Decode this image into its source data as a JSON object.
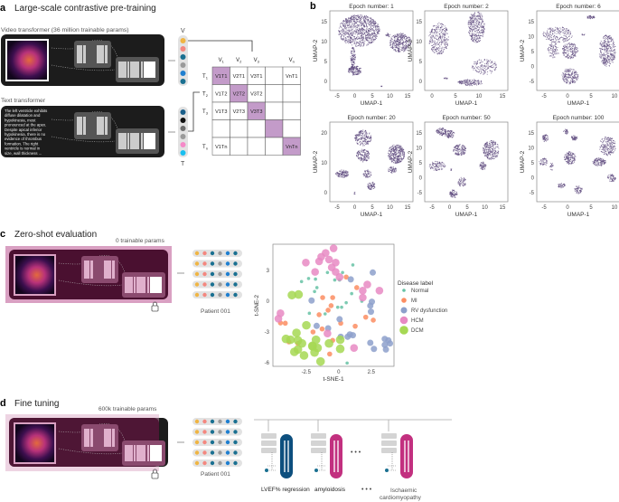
{
  "panel_a": {
    "letter": "a",
    "title": "Large-scale contrastive pre-training",
    "video_label": "Video transformer (36 million trainable params)",
    "text_label": "Text transformer",
    "report_lines": [
      "The left ventricle exhibits",
      "diffuse dilatation and",
      "hypokinesia, most",
      "pronounced at the apex.",
      "Despite apical inferior",
      "hypokinesia, there is no",
      "evidence of thrombus",
      "formation. The right",
      "ventricle is normal in",
      "size, wall thickness ..."
    ],
    "v_label": "V",
    "t_label": "T",
    "v_colors": [
      "#f0b543",
      "#f4877f",
      "#1a7091",
      "#9a9a9a",
      "#1f7fd0",
      "#1a7091"
    ],
    "t_colors": [
      "#1a5f8a",
      "#111111",
      "#6f6f6f",
      "#9a9a9a",
      "#f58ac8",
      "#19bff0"
    ],
    "matrix": {
      "col_headers": [
        "V1",
        "V2",
        "V3",
        "",
        "Vn"
      ],
      "row_headers": [
        "T1",
        "T2",
        "T3",
        "",
        "Tn"
      ],
      "cells": [
        [
          "V1T1",
          "V2T1",
          "V3T1",
          "",
          "VnT1"
        ],
        [
          "V1T2",
          "V2T2",
          "V3T2",
          "",
          ""
        ],
        [
          "V1T3",
          "V2T3",
          "V3T3",
          "",
          ""
        ],
        [
          "",
          "",
          "",
          "",
          ""
        ],
        [
          "V1Tn",
          "",
          "",
          "",
          "VnTn"
        ]
      ],
      "highlight_color": "#c39bc9"
    }
  },
  "panel_b": {
    "letter": "b",
    "plots": [
      {
        "title": "Epoch number: 1",
        "xticks": [
          "-5",
          "0",
          "5",
          "10",
          "15"
        ],
        "yticks": [
          "15",
          "10",
          "5",
          "0"
        ]
      },
      {
        "title": "Epoch number: 2",
        "xticks": [
          "0",
          "5",
          "10",
          "15"
        ],
        "yticks": [
          "15",
          "10",
          "5",
          "0"
        ]
      },
      {
        "title": "Epoch number: 6",
        "xticks": [
          "-5",
          "0",
          "5",
          "10"
        ],
        "yticks": [
          "15",
          "10",
          "5",
          "0",
          "-5"
        ]
      },
      {
        "title": "Epoch number: 20",
        "xticks": [
          "-5",
          "0",
          "5",
          "10",
          "15"
        ],
        "yticks": [
          "20",
          "10",
          "0"
        ]
      },
      {
        "title": "Epoch number: 50",
        "xticks": [
          "-5",
          "0",
          "5",
          "10",
          "15"
        ],
        "yticks": [
          "15",
          "10",
          "5",
          "0",
          "-5"
        ]
      },
      {
        "title": "Epoch number: 100",
        "xticks": [
          "-5",
          "0",
          "5",
          "10"
        ],
        "yticks": [
          "15",
          "10",
          "5",
          "0",
          "-5"
        ]
      }
    ],
    "xlabel": "UMAP-1",
    "ylabel": "UMAP-2",
    "point_color": "#5e4a7e"
  },
  "panel_c": {
    "letter": "c",
    "title": "Zero-shot evaluation",
    "params": "0 trainable params",
    "patient": "Patient 001",
    "lock_icon": "lock"
  },
  "chart_data": {
    "type": "scatter",
    "xlabel": "t-SNE-1",
    "ylabel": "t-SNE-2",
    "xlim": [
      -5.05,
      4.25
    ],
    "ylim": [
      -6.35,
      5.55
    ],
    "xticks": [
      -2.5,
      0,
      2.5
    ],
    "yticks": [
      3,
      0,
      -3,
      -6
    ],
    "grid": false,
    "legend_title": "Disease label",
    "legend_position": "right",
    "series": [
      {
        "name": "Normal",
        "color": "#66c2a5",
        "size": "small",
        "points": [
          [
            1.09,
            3.53
          ],
          [
            -0.86,
            2.79
          ],
          [
            0.3,
            2.79
          ],
          [
            -2.85,
            1.91
          ],
          [
            -2.31,
            2.21
          ],
          [
            -1.78,
            2.15
          ],
          [
            -0.3,
            2.06
          ],
          [
            0.07,
            2.06
          ],
          [
            -1.67,
            1.32
          ],
          [
            -1.85,
            0.94
          ],
          [
            1.0,
            0.74
          ],
          [
            0.58,
            -0.15
          ],
          [
            -0.07,
            -0.59
          ],
          [
            0.23,
            -0.59
          ],
          [
            -2.25,
            -1.18
          ],
          [
            -1.04,
            -1.24
          ],
          [
            1.78,
            0
          ],
          [
            0.65,
            -6.03
          ]
        ]
      },
      {
        "name": "MI",
        "color": "#fc8d62",
        "size": "medium",
        "points": [
          [
            0.58,
            2.35
          ],
          [
            1.39,
            1.32
          ],
          [
            -1.23,
            0.35
          ],
          [
            -0.46,
            0.35
          ],
          [
            -0.58,
            -0.44
          ],
          [
            -0.81,
            -0.88
          ],
          [
            -1.5,
            -1.32
          ],
          [
            2.08,
            -1.56
          ],
          [
            2.66,
            -1.85
          ],
          [
            -4.47,
            -2.12
          ],
          [
            -4.1,
            -2.15
          ],
          [
            0.16,
            -2.15
          ],
          [
            1.27,
            -2.44
          ],
          [
            -1.27,
            -2.71
          ],
          [
            -1.97,
            -3.0
          ],
          [
            -0.46,
            -3.82
          ],
          [
            -3.82,
            -3.97
          ],
          [
            -3.13,
            -4.12
          ],
          [
            -0.69,
            -5.15
          ]
        ]
      },
      {
        "name": "RV dysfunction",
        "color": "#8da0cb",
        "size": "medium-large",
        "points": [
          [
            2.62,
            2.79
          ],
          [
            0.93,
            2.12
          ],
          [
            -2.08,
            0.06
          ],
          [
            2.55,
            -0.06
          ],
          [
            2.43,
            -0.44
          ],
          [
            2.48,
            -1.03
          ],
          [
            0.07,
            -1.76
          ],
          [
            -1.69,
            -2.41
          ],
          [
            -0.81,
            -2.65
          ],
          [
            0.16,
            -3.47
          ],
          [
            0.69,
            -3.47
          ],
          [
            0.86,
            -3.24
          ],
          [
            1.09,
            -3.32
          ],
          [
            2.43,
            -4.06
          ],
          [
            2.71,
            -4.65
          ],
          [
            3.54,
            -3.68
          ],
          [
            3.82,
            -3.82
          ],
          [
            3.94,
            -4.12
          ],
          [
            3.54,
            -4.26
          ],
          [
            3.63,
            -4.71
          ]
        ]
      },
      {
        "name": "HCM",
        "color": "#e78ac3",
        "size": "large",
        "points": [
          [
            -0.39,
            5.15
          ],
          [
            -1.0,
            4.7
          ],
          [
            -1.34,
            4.32
          ],
          [
            -1.5,
            3.88
          ],
          [
            -0.74,
            4.06
          ],
          [
            -0.23,
            3.76
          ],
          [
            -0.53,
            3.29
          ],
          [
            -2.52,
            3.76
          ],
          [
            -1.81,
            2.85
          ],
          [
            -0.23,
            2.85
          ],
          [
            0.07,
            2.35
          ],
          [
            2.2,
            1.62
          ],
          [
            1.85,
            1.03
          ],
          [
            3.13,
            1.03
          ],
          [
            1.85,
            0.35
          ],
          [
            -4.47,
            -1.18
          ],
          [
            -4.63,
            -1.71
          ],
          [
            -0.86,
            -3.15
          ],
          [
            1.18,
            -4.56
          ]
        ]
      },
      {
        "name": "DCM",
        "color": "#a6d854",
        "size": "largest",
        "points": [
          [
            -3.59,
            0.59
          ],
          [
            -3.08,
            0.65
          ],
          [
            -2.48,
            -2.35
          ],
          [
            -3.24,
            -3.09
          ],
          [
            -3.7,
            -3.76
          ],
          [
            -3.13,
            -3.82
          ],
          [
            -2.82,
            -4.12
          ],
          [
            -3.4,
            -4.94
          ],
          [
            -3.13,
            -4.71
          ],
          [
            -2.66,
            -5.29
          ],
          [
            -2.01,
            -4.35
          ],
          [
            -1.74,
            -3.76
          ],
          [
            -2.01,
            -4.41
          ],
          [
            -1.85,
            -5.0
          ],
          [
            -1.62,
            -4.56
          ],
          [
            -1.39,
            -5.88
          ],
          [
            -0.74,
            -4.12
          ],
          [
            0.12,
            -3.76
          ],
          [
            0.12,
            -4.65
          ],
          [
            -4.05,
            -3.68
          ]
        ]
      }
    ]
  },
  "panel_d": {
    "letter": "d",
    "title": "Fine tuning",
    "params": "600k trainable params",
    "patient": "Patient 001",
    "heads": [
      {
        "label": "LVEF% regression",
        "color": "#0d4f7e"
      },
      {
        "label": "amyloidosis",
        "color": "#c2307f"
      },
      {
        "label": "Ischaemic cardiomyopathy",
        "color": "#c2307f"
      }
    ],
    "ellipsis": "• • •"
  },
  "embedding_colors": [
    "#f0b543",
    "#f4877f",
    "#1a7091",
    "#9a9a9a",
    "#1f7fd0",
    "#1a7091"
  ]
}
